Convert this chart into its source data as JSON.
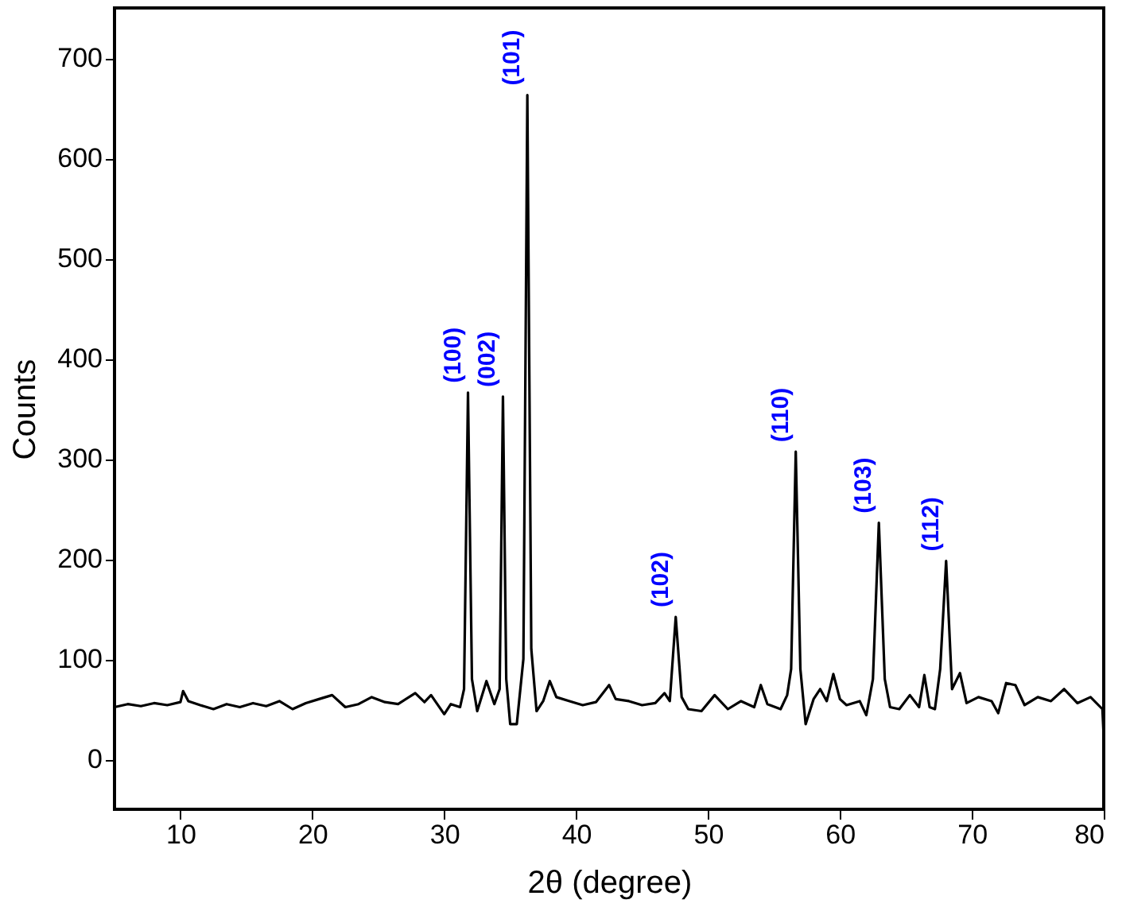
{
  "chart_data": {
    "type": "line",
    "xlabel": "2θ (degree)",
    "ylabel": "Counts",
    "xlim": [
      5,
      80
    ],
    "xticks": [
      10,
      20,
      30,
      40,
      50,
      60,
      70,
      80
    ],
    "ylim": [
      -50,
      750
    ],
    "yticks": [
      0,
      100,
      200,
      300,
      400,
      500,
      600,
      700
    ],
    "grid": false,
    "marker": "none",
    "line_style": "solid",
    "series": [
      {
        "color": "#000000",
        "x": [
          5,
          6,
          7,
          8,
          9,
          10,
          10.2,
          10.6,
          11.5,
          12.5,
          13.5,
          14.5,
          15.5,
          16.5,
          17.5,
          18.5,
          19.5,
          20.5,
          21.5,
          22.5,
          23.5,
          24.5,
          25.5,
          26.5,
          27.8,
          28.5,
          29,
          30,
          30.5,
          31.2,
          31.5,
          31.8,
          32.1,
          32.5,
          33.2,
          33.8,
          34.2,
          34.45,
          34.7,
          35,
          35.5,
          36,
          36.3,
          36.6,
          37,
          37.5,
          38,
          38.5,
          39.5,
          40.5,
          41.5,
          42.5,
          43,
          44,
          45,
          46,
          46.7,
          47.1,
          47.55,
          48,
          48.5,
          49.5,
          50.5,
          51.5,
          52.5,
          53.5,
          54,
          54.5,
          55.5,
          56,
          56.3,
          56.65,
          57,
          57.4,
          58,
          58.5,
          59,
          59.5,
          60,
          60.5,
          61.5,
          62,
          62.5,
          62.95,
          63.4,
          63.8,
          64.5,
          65.3,
          66,
          66.4,
          66.8,
          67.2,
          67.6,
          68.05,
          68.5,
          69.1,
          69.6,
          70.5,
          71.5,
          72,
          72.6,
          73.3,
          74,
          75,
          76,
          77,
          78,
          79,
          79.9,
          80
        ],
        "values": [
          52,
          55,
          53,
          56,
          54,
          57,
          68,
          58,
          54,
          50,
          55,
          52,
          56,
          53,
          58,
          50,
          56,
          60,
          64,
          52,
          55,
          62,
          57,
          55,
          66,
          57,
          64,
          45,
          55,
          52,
          70,
          366,
          80,
          48,
          78,
          55,
          70,
          362,
          80,
          35,
          35,
          100,
          663,
          110,
          48,
          58,
          78,
          62,
          58,
          54,
          57,
          74,
          60,
          58,
          54,
          56,
          66,
          58,
          142,
          62,
          50,
          48,
          64,
          50,
          58,
          52,
          74,
          55,
          50,
          64,
          90,
          307,
          90,
          35,
          60,
          70,
          58,
          85,
          60,
          54,
          58,
          44,
          80,
          236,
          80,
          52,
          50,
          64,
          52,
          84,
          52,
          50,
          90,
          198,
          70,
          86,
          56,
          62,
          58,
          46,
          76,
          74,
          54,
          62,
          58,
          70,
          56,
          62,
          50,
          22
        ]
      }
    ],
    "annotations": [
      {
        "text": "(100)",
        "x": 31.8,
        "y": 366
      },
      {
        "text": "(002)",
        "x": 34.45,
        "y": 362
      },
      {
        "text": "(101)",
        "x": 36.3,
        "y": 663
      },
      {
        "text": "(102)",
        "x": 47.55,
        "y": 142
      },
      {
        "text": "(110)",
        "x": 56.65,
        "y": 307
      },
      {
        "text": "(103)",
        "x": 62.95,
        "y": 236
      },
      {
        "text": "(112)",
        "x": 68.05,
        "y": 198
      }
    ]
  }
}
